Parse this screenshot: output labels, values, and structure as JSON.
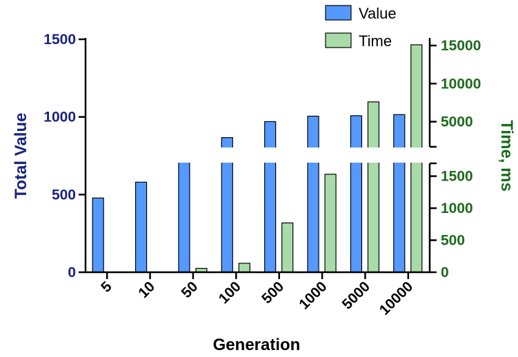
{
  "chart_data": {
    "type": "bar",
    "xlabel": "Generation",
    "categories": [
      "5",
      "10",
      "50",
      "100",
      "500",
      "1000",
      "5000",
      "10000"
    ],
    "left_axis": {
      "label": "Total Value",
      "ylim": [
        0,
        1500
      ],
      "ticks": [
        "0",
        "500",
        "1000",
        "1500"
      ],
      "tick_values": [
        0,
        500,
        1000,
        1500
      ]
    },
    "right_axis": {
      "label": "Time, ms",
      "broken": true,
      "lower_range": [
        0,
        1700
      ],
      "upper_range": [
        1700,
        16000
      ],
      "lower_ticks": [
        "0",
        "500",
        "1000",
        "1500"
      ],
      "lower_tick_values": [
        0,
        500,
        1000,
        1500
      ],
      "upper_ticks": [
        "5000",
        "10000",
        "15000"
      ],
      "upper_tick_values": [
        5000,
        10000,
        15000
      ]
    },
    "series": [
      {
        "name": "Value",
        "axis": "left",
        "color": "#5599ff",
        "values": [
          478,
          580,
          788,
          867,
          970,
          1005,
          1008,
          1015
        ]
      },
      {
        "name": "Time",
        "axis": "right",
        "color": "#a8dba8",
        "values": [
          0,
          0,
          60,
          140,
          770,
          1530,
          7600,
          15100
        ]
      }
    ],
    "legend": {
      "position": "top-right",
      "items": [
        "Value",
        "Time"
      ]
    },
    "grid": false
  }
}
